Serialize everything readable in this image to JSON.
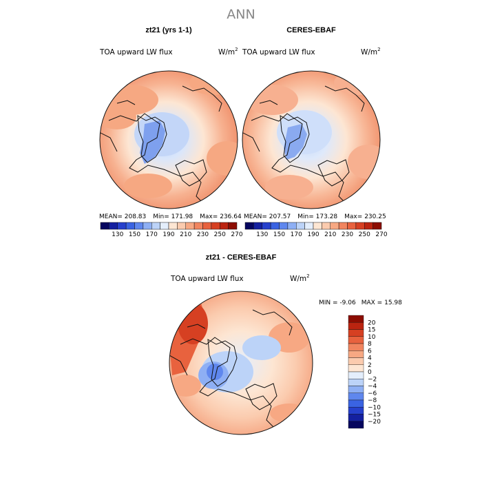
{
  "chart_data": [
    {
      "type": "heatmap",
      "page_title": "ANN",
      "title": "zt21 (yrs 1-1)",
      "variable": "TOA upward LW flux",
      "units": "W/m",
      "units_exp": "2",
      "stats": {
        "mean_label": "MEAN=",
        "mean": "208.83",
        "min_label": "Min=",
        "min": "171.98",
        "max_label": "Max=",
        "max": "236.64"
      },
      "colorbar_levels": [
        120,
        130,
        140,
        150,
        160,
        170,
        180,
        190,
        200,
        210,
        220,
        230,
        240,
        250,
        260,
        270
      ],
      "colorbar_tick_labels": [
        "130",
        "150",
        "170",
        "190",
        "210",
        "230",
        "250",
        "270"
      ],
      "colorbar_colors": [
        "#05055e",
        "#1420a0",
        "#2640cc",
        "#3a63e2",
        "#5f87ee",
        "#8eaff4",
        "#bcd3f8",
        "#e4eefc",
        "#fde6d3",
        "#fbcbae",
        "#f7a883",
        "#f1855f",
        "#e8623e",
        "#d64022",
        "#bb2410",
        "#8c0d02"
      ]
    },
    {
      "type": "heatmap",
      "title": "CERES-EBAF",
      "variable": "TOA upward LW flux",
      "units": "W/m",
      "units_exp": "2",
      "stats": {
        "mean_label": "MEAN=",
        "mean": "207.57",
        "min_label": "Min=",
        "min": "173.28",
        "max_label": "Max=",
        "max": "230.25"
      },
      "colorbar_tick_labels": [
        "130",
        "150",
        "170",
        "190",
        "210",
        "230",
        "250",
        "270"
      ]
    },
    {
      "type": "heatmap",
      "title": "zt21 - CERES-EBAF",
      "variable": "TOA upward LW flux",
      "units": "W/m",
      "units_exp": "2",
      "stats": {
        "min_label": "MIN =",
        "min": "-9.06",
        "max_label": "MAX =",
        "max": "15.98"
      },
      "colorbar_levels": [
        20,
        15,
        10,
        8,
        6,
        4,
        2,
        0,
        -2,
        -4,
        -6,
        -8,
        -10,
        -15,
        -20
      ],
      "colorbar_tick_labels": [
        "20",
        "15",
        "10",
        "8",
        "6",
        "4",
        "2",
        "0",
        "−2",
        "−4",
        "−6",
        "−8",
        "−10",
        "−15",
        "−20"
      ],
      "colorbar_colors": [
        "#8c0d02",
        "#bb2410",
        "#d64022",
        "#e8623e",
        "#f1855f",
        "#f7a883",
        "#fbcbae",
        "#fde6d3",
        "#e4eefc",
        "#bcd3f8",
        "#8eaff4",
        "#5f87ee",
        "#3a63e2",
        "#2640cc",
        "#1420a0",
        "#05055e"
      ]
    }
  ]
}
